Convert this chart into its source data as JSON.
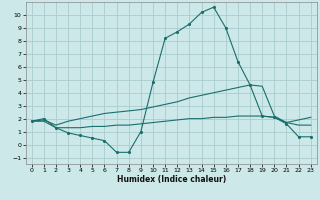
{
  "xlabel": "Humidex (Indice chaleur)",
  "bg_color": "#cce8e8",
  "grid_color": "#aacccc",
  "line_color": "#1a6e6e",
  "xlim": [
    -0.5,
    23.5
  ],
  "ylim": [
    -1.5,
    11.0
  ],
  "xticks": [
    0,
    1,
    2,
    3,
    4,
    5,
    6,
    7,
    8,
    9,
    10,
    11,
    12,
    13,
    14,
    15,
    16,
    17,
    18,
    19,
    20,
    21,
    22,
    23
  ],
  "yticks": [
    -1,
    0,
    1,
    2,
    3,
    4,
    5,
    6,
    7,
    8,
    9,
    10
  ],
  "series1_x": [
    0,
    1,
    2,
    3,
    4,
    5,
    6,
    7,
    8,
    9,
    10,
    11,
    12,
    13,
    14,
    15,
    16,
    17,
    18,
    19,
    20,
    21,
    22,
    23
  ],
  "series1_y": [
    1.8,
    2.0,
    1.3,
    0.9,
    0.7,
    0.5,
    0.3,
    -0.6,
    -0.6,
    1.0,
    4.8,
    8.2,
    8.7,
    9.3,
    10.2,
    10.6,
    9.0,
    6.4,
    4.6,
    2.2,
    2.1,
    1.6,
    0.6,
    0.6
  ],
  "series2_x": [
    0,
    1,
    2,
    3,
    4,
    5,
    6,
    7,
    8,
    9,
    10,
    11,
    12,
    13,
    14,
    15,
    16,
    17,
    18,
    19,
    20,
    21,
    22,
    23
  ],
  "series2_y": [
    1.8,
    1.9,
    1.5,
    1.8,
    2.0,
    2.2,
    2.4,
    2.5,
    2.6,
    2.7,
    2.9,
    3.1,
    3.3,
    3.6,
    3.8,
    4.0,
    4.2,
    4.4,
    4.6,
    4.5,
    2.2,
    1.7,
    1.9,
    2.1
  ],
  "series3_x": [
    0,
    1,
    2,
    3,
    4,
    5,
    6,
    7,
    8,
    9,
    10,
    11,
    12,
    13,
    14,
    15,
    16,
    17,
    18,
    19,
    20,
    21,
    22,
    23
  ],
  "series3_y": [
    1.8,
    1.8,
    1.3,
    1.3,
    1.3,
    1.4,
    1.4,
    1.5,
    1.5,
    1.6,
    1.7,
    1.8,
    1.9,
    2.0,
    2.0,
    2.1,
    2.1,
    2.2,
    2.2,
    2.2,
    2.1,
    1.7,
    1.5,
    1.5
  ]
}
